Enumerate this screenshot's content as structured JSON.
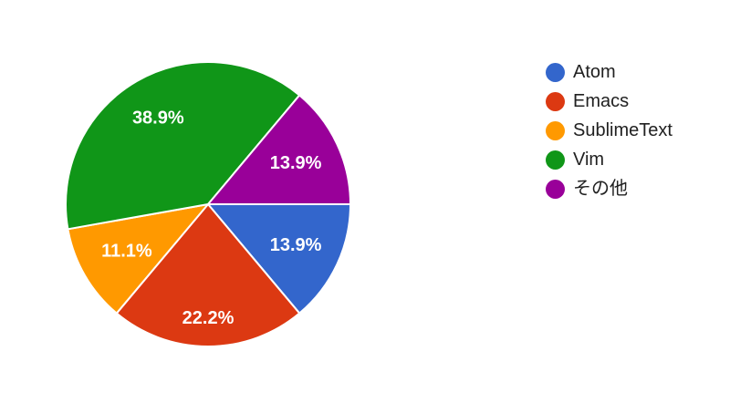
{
  "chart_data": {
    "type": "pie",
    "title": "",
    "categories": [
      "Atom",
      "Emacs",
      "SublimeText",
      "Vim",
      "その他"
    ],
    "values": [
      13.9,
      22.2,
      11.1,
      38.9,
      13.9
    ],
    "slice_labels": [
      "13.9%",
      "22.2%",
      "11.1%",
      "38.9%",
      "13.9%"
    ],
    "colors": [
      "#3366cc",
      "#dc3912",
      "#ff9900",
      "#109618",
      "#990099"
    ],
    "legend_position": "right",
    "layout_hints": {
      "start_angle": "3-oclock",
      "direction": "clockwise",
      "slice_border_color": "#ffffff",
      "slice_label_color": "#ffffff",
      "legend_text_color": "#212121",
      "background": "#ffffff"
    }
  }
}
